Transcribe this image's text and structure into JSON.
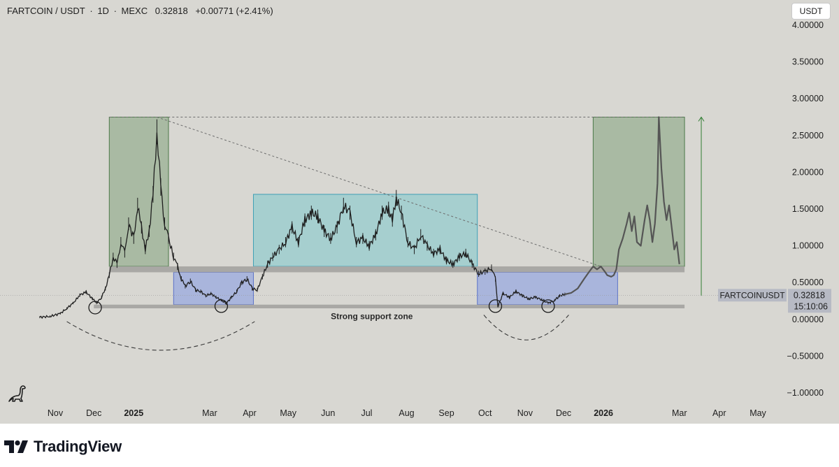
{
  "header": {
    "symbol": "FARTCOIN / USDT",
    "sep1": "·",
    "interval": "1D",
    "sep2": "·",
    "exchange": "MEXC",
    "last": "0.32818",
    "change": "+0.00771 (+2.41%)"
  },
  "currency_button": "USDT",
  "branding": {
    "name": "TradingView"
  },
  "colors": {
    "background": "#d8d7d2",
    "green_zone": "#a6b8a0",
    "blue_zone": "#a7b3dc",
    "cyan_zone": "#a3cfcf",
    "grey_band": "#a9a8a5",
    "price_line": "#1e1e1e"
  },
  "chart_data": {
    "type": "line",
    "title": "FARTCOIN / USDT · 1D · MEXC",
    "ylim": [
      -1.1,
      4.15
    ],
    "y_ticks": [
      "4.00000",
      "3.50000",
      "3.00000",
      "2.50000",
      "2.00000",
      "1.50000",
      "1.00000",
      "0.50000",
      "0.00000",
      "−0.50000",
      "−1.00000"
    ],
    "y_tick_values": [
      4.0,
      3.5,
      3.0,
      2.5,
      2.0,
      1.5,
      1.0,
      0.5,
      0.0,
      -0.5,
      -1.0
    ],
    "x_labels": [
      {
        "label": "Nov",
        "date": "2024-11-01",
        "bold": false
      },
      {
        "label": "Dec",
        "date": "2024-12-01",
        "bold": false
      },
      {
        "label": "2025",
        "date": "2025-01-01",
        "bold": true
      },
      {
        "label": "Mar",
        "date": "2025-03-01",
        "bold": false
      },
      {
        "label": "Apr",
        "date": "2025-04-01",
        "bold": false
      },
      {
        "label": "May",
        "date": "2025-05-01",
        "bold": false
      },
      {
        "label": "Jun",
        "date": "2025-06-01",
        "bold": false
      },
      {
        "label": "Jul",
        "date": "2025-07-01",
        "bold": false
      },
      {
        "label": "Aug",
        "date": "2025-08-01",
        "bold": false
      },
      {
        "label": "Sep",
        "date": "2025-09-01",
        "bold": false
      },
      {
        "label": "Oct",
        "date": "2025-10-01",
        "bold": false
      },
      {
        "label": "Nov",
        "date": "2025-11-01",
        "bold": false
      },
      {
        "label": "Dec",
        "date": "2025-12-01",
        "bold": false
      },
      {
        "label": "2026",
        "date": "2026-01-01",
        "bold": true
      },
      {
        "label": "Mar",
        "date": "2026-03-01",
        "bold": false
      },
      {
        "label": "Apr",
        "date": "2026-04-01",
        "bold": false
      },
      {
        "label": "May",
        "date": "2026-05-01",
        "bold": false
      }
    ],
    "series": [
      {
        "name": "FARTCOIN/USDT actual",
        "style": "candles",
        "points": [
          [
            "2024-10-20",
            0.03
          ],
          [
            "2024-10-28",
            0.04
          ],
          [
            "2024-11-05",
            0.08
          ],
          [
            "2024-11-10",
            0.15
          ],
          [
            "2024-11-15",
            0.22
          ],
          [
            "2024-11-20",
            0.33
          ],
          [
            "2024-11-25",
            0.37
          ],
          [
            "2024-11-30",
            0.28
          ],
          [
            "2024-12-03",
            0.22
          ],
          [
            "2024-12-07",
            0.3
          ],
          [
            "2024-12-10",
            0.42
          ],
          [
            "2024-12-13",
            0.6
          ],
          [
            "2024-12-16",
            0.85
          ],
          [
            "2024-12-19",
            0.75
          ],
          [
            "2024-12-22",
            1.05
          ],
          [
            "2024-12-25",
            0.9
          ],
          [
            "2024-12-28",
            1.3
          ],
          [
            "2025-01-01",
            1.1
          ],
          [
            "2025-01-04",
            1.55
          ],
          [
            "2025-01-07",
            1.25
          ],
          [
            "2025-01-10",
            0.95
          ],
          [
            "2025-01-13",
            1.2
          ],
          [
            "2025-01-16",
            1.7
          ],
          [
            "2025-01-19",
            2.55
          ],
          [
            "2025-01-22",
            1.8
          ],
          [
            "2025-01-25",
            1.3
          ],
          [
            "2025-01-28",
            1.1
          ],
          [
            "2025-02-01",
            0.85
          ],
          [
            "2025-02-04",
            0.72
          ],
          [
            "2025-02-07",
            0.55
          ],
          [
            "2025-02-10",
            0.45
          ],
          [
            "2025-02-14",
            0.52
          ],
          [
            "2025-02-18",
            0.4
          ],
          [
            "2025-02-22",
            0.38
          ],
          [
            "2025-02-26",
            0.32
          ],
          [
            "2025-03-02",
            0.35
          ],
          [
            "2025-03-06",
            0.3
          ],
          [
            "2025-03-10",
            0.26
          ],
          [
            "2025-03-14",
            0.22
          ],
          [
            "2025-03-18",
            0.3
          ],
          [
            "2025-03-22",
            0.38
          ],
          [
            "2025-03-26",
            0.5
          ],
          [
            "2025-03-30",
            0.55
          ],
          [
            "2025-04-03",
            0.42
          ],
          [
            "2025-04-07",
            0.4
          ],
          [
            "2025-04-11",
            0.58
          ],
          [
            "2025-04-15",
            0.75
          ],
          [
            "2025-04-19",
            0.85
          ],
          [
            "2025-04-24",
            0.95
          ],
          [
            "2025-04-29",
            1.05
          ],
          [
            "2025-05-04",
            1.25
          ],
          [
            "2025-05-09",
            1.05
          ],
          [
            "2025-05-14",
            1.35
          ],
          [
            "2025-05-19",
            1.45
          ],
          [
            "2025-05-24",
            1.4
          ],
          [
            "2025-05-29",
            1.2
          ],
          [
            "2025-06-03",
            1.1
          ],
          [
            "2025-06-08",
            1.25
          ],
          [
            "2025-06-13",
            1.55
          ],
          [
            "2025-06-18",
            1.45
          ],
          [
            "2025-06-23",
            1.05
          ],
          [
            "2025-06-28",
            1.1
          ],
          [
            "2025-07-03",
            1.0
          ],
          [
            "2025-07-08",
            1.15
          ],
          [
            "2025-07-13",
            1.45
          ],
          [
            "2025-07-18",
            1.5
          ],
          [
            "2025-07-21",
            1.35
          ],
          [
            "2025-07-24",
            1.65
          ],
          [
            "2025-07-28",
            1.45
          ],
          [
            "2025-08-02",
            1.05
          ],
          [
            "2025-08-07",
            0.95
          ],
          [
            "2025-08-12",
            1.15
          ],
          [
            "2025-08-17",
            1.0
          ],
          [
            "2025-08-22",
            0.9
          ],
          [
            "2025-08-27",
            0.95
          ],
          [
            "2025-09-01",
            0.8
          ],
          [
            "2025-09-06",
            0.75
          ],
          [
            "2025-09-11",
            0.85
          ],
          [
            "2025-09-16",
            0.9
          ],
          [
            "2025-09-21",
            0.75
          ],
          [
            "2025-09-26",
            0.62
          ],
          [
            "2025-10-01",
            0.65
          ],
          [
            "2025-10-06",
            0.7
          ],
          [
            "2025-10-09",
            0.55
          ],
          [
            "2025-10-11",
            0.18
          ],
          [
            "2025-10-15",
            0.35
          ],
          [
            "2025-10-20",
            0.3
          ],
          [
            "2025-10-25",
            0.38
          ],
          [
            "2025-10-30",
            0.32
          ],
          [
            "2025-11-04",
            0.28
          ],
          [
            "2025-11-09",
            0.3
          ],
          [
            "2025-11-14",
            0.27
          ],
          [
            "2025-11-19",
            0.22
          ],
          [
            "2025-11-24",
            0.26
          ],
          [
            "2025-11-28",
            0.32
          ],
          [
            "2025-12-02",
            0.34
          ]
        ]
      },
      {
        "name": "Projected path",
        "style": "line",
        "points": [
          [
            "2025-12-02",
            0.34
          ],
          [
            "2025-12-07",
            0.36
          ],
          [
            "2025-12-12",
            0.42
          ],
          [
            "2025-12-17",
            0.55
          ],
          [
            "2025-12-21",
            0.65
          ],
          [
            "2025-12-24",
            0.72
          ],
          [
            "2025-12-27",
            0.68
          ],
          [
            "2025-12-30",
            0.72
          ],
          [
            "2026-01-02",
            0.65
          ],
          [
            "2026-01-04",
            0.6
          ],
          [
            "2026-01-07",
            0.58
          ],
          [
            "2026-01-09",
            0.6
          ],
          [
            "2026-01-11",
            0.68
          ],
          [
            "2026-01-13",
            0.95
          ],
          [
            "2026-01-16",
            1.1
          ],
          [
            "2026-01-19",
            1.3
          ],
          [
            "2026-01-21",
            1.45
          ],
          [
            "2026-01-23",
            1.2
          ],
          [
            "2026-01-25",
            1.4
          ],
          [
            "2026-01-27",
            1.05
          ],
          [
            "2026-01-30",
            1.0
          ],
          [
            "2026-02-02",
            1.35
          ],
          [
            "2026-02-04",
            1.55
          ],
          [
            "2026-02-06",
            1.35
          ],
          [
            "2026-02-08",
            1.05
          ],
          [
            "2026-02-10",
            1.3
          ],
          [
            "2026-02-12",
            1.85
          ],
          [
            "2026-02-13",
            2.75
          ],
          [
            "2026-02-15",
            2.05
          ],
          [
            "2026-02-17",
            1.6
          ],
          [
            "2026-02-19",
            1.35
          ],
          [
            "2026-02-21",
            1.55
          ],
          [
            "2026-02-23",
            1.25
          ],
          [
            "2026-02-25",
            0.95
          ],
          [
            "2026-02-27",
            1.05
          ],
          [
            "2026-03-01",
            0.75
          ]
        ]
      }
    ],
    "zones": [
      {
        "kind": "green",
        "x0": "2024-12-13",
        "x1": "2025-01-28",
        "y0": 0.72,
        "y1": 2.75
      },
      {
        "kind": "blue",
        "x0": "2025-02-01",
        "x1": "2025-04-04",
        "y0": 0.2,
        "y1": 0.64
      },
      {
        "kind": "cyan",
        "x0": "2025-04-04",
        "x1": "2025-09-25",
        "y0": 0.72,
        "y1": 1.7
      },
      {
        "kind": "blue",
        "x0": "2025-09-25",
        "x1": "2026-01-12",
        "y0": 0.2,
        "y1": 0.64
      },
      {
        "kind": "green",
        "x0": "2025-12-24",
        "x1": "2026-03-05",
        "y0": 0.72,
        "y1": 2.75
      }
    ],
    "bands": [
      {
        "name": "resistance band",
        "x0": "2024-12-13",
        "x1": "2026-03-05",
        "y0": 0.64,
        "y1": 0.72
      },
      {
        "name": "support band",
        "x0": "2024-12-01",
        "x1": "2026-03-05",
        "y0": 0.15,
        "y1": 0.2
      }
    ],
    "annotation": {
      "text": "Strong support zone",
      "x": "2025-07-05",
      "y": 0.04
    },
    "circles": [
      {
        "x": "2024-12-02",
        "y": 0.16
      },
      {
        "x": "2025-03-10",
        "y": 0.18
      },
      {
        "x": "2025-10-09",
        "y": 0.18
      },
      {
        "x": "2025-11-19",
        "y": 0.18
      }
    ],
    "arcs": [
      {
        "x0": "2024-11-10",
        "x1": "2025-04-05",
        "ymin": -0.42,
        "ytop": -0.03
      },
      {
        "x0": "2025-09-30",
        "x1": "2025-12-05",
        "ymin": -0.28,
        "ytop": 0.06
      }
    ],
    "trendlines": [
      {
        "x0": "2024-12-13",
        "y0": 2.75,
        "x1": "2026-03-05",
        "y1": 2.75,
        "dashed": true
      },
      {
        "x0": "2025-01-19",
        "y0": 2.75,
        "x1": "2025-12-30",
        "y1": 0.72,
        "dashed": true
      }
    ],
    "measure_arrow": {
      "x": "2026-03-18",
      "y0": 0.32,
      "y1": 2.75
    },
    "price_labels": {
      "symbol": "FARTCOINUSDT",
      "price": "0.32818",
      "countdown": "15:10:06",
      "value": 0.32818
    }
  }
}
